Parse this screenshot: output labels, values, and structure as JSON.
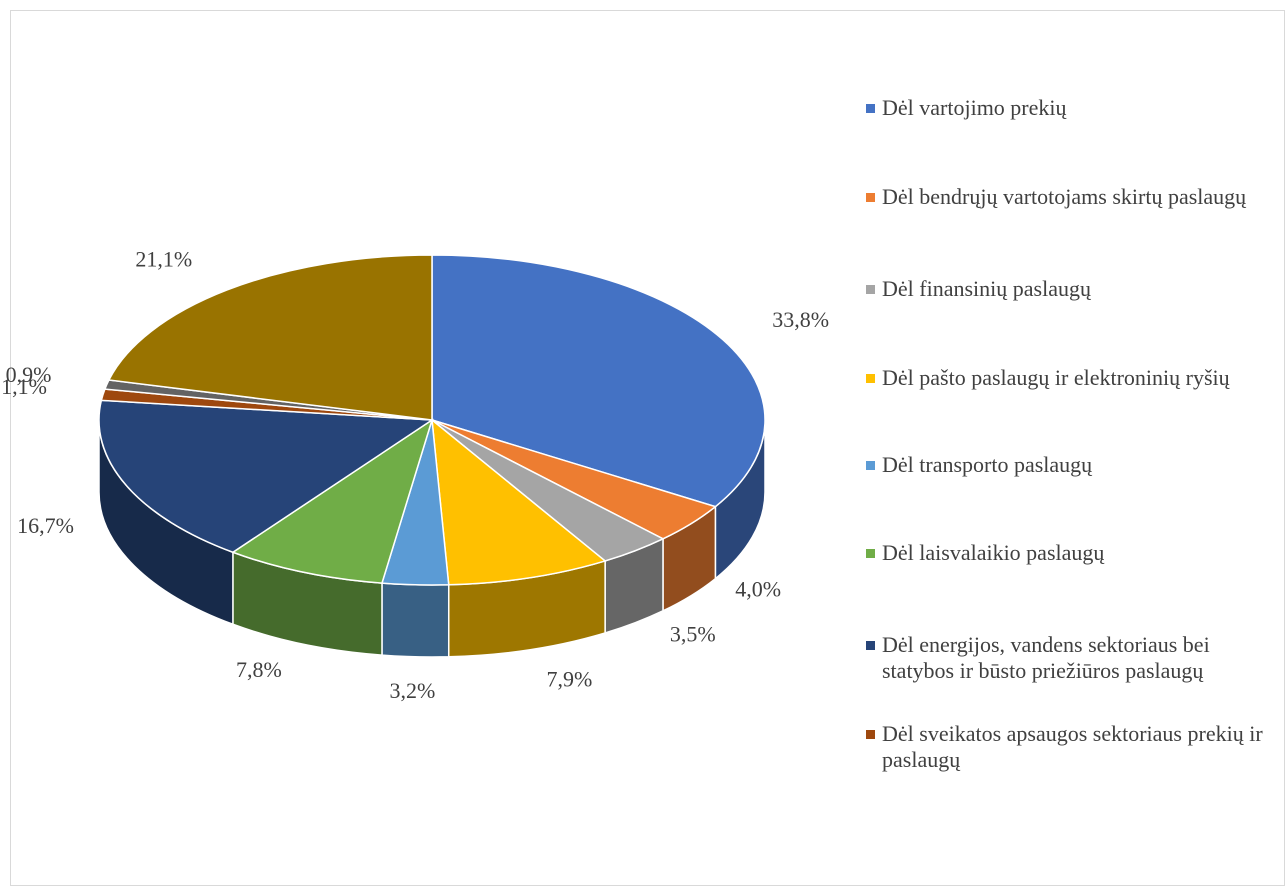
{
  "chart_data": {
    "type": "pie",
    "categories": [
      "Dėl vartojimo prekių",
      "Dėl bendrųjų vartotojams skirtų paslaugų",
      "Dėl finansinių paslaugų",
      "Dėl pašto paslaugų ir elektroninių ryšių",
      "Dėl transporto paslaugų",
      "Dėl laisvalaikio paslaugų",
      "Dėl energijos, vandens sektoriaus bei statybos ir būsto priežiūros paslaugų",
      "Dėl sveikatos apsaugos sektoriaus prekių ir paslaugų",
      null,
      null
    ],
    "values": [
      33.8,
      4.0,
      3.5,
      7.9,
      3.2,
      7.8,
      16.7,
      1.1,
      0.9,
      21.1
    ],
    "value_labels": [
      "33,8%",
      "4,0%",
      "3,5%",
      "7,9%",
      "3,2%",
      "7,8%",
      "16,7%",
      "1,1%",
      "0,9%",
      "21,1%"
    ],
    "colors": [
      "#4472c4",
      "#ed7d31",
      "#a5a5a5",
      "#ffc000",
      "#5b9bd5",
      "#70ad47",
      "#264478",
      "#9e480e",
      "#636363",
      "#997300"
    ],
    "legend": "right"
  }
}
